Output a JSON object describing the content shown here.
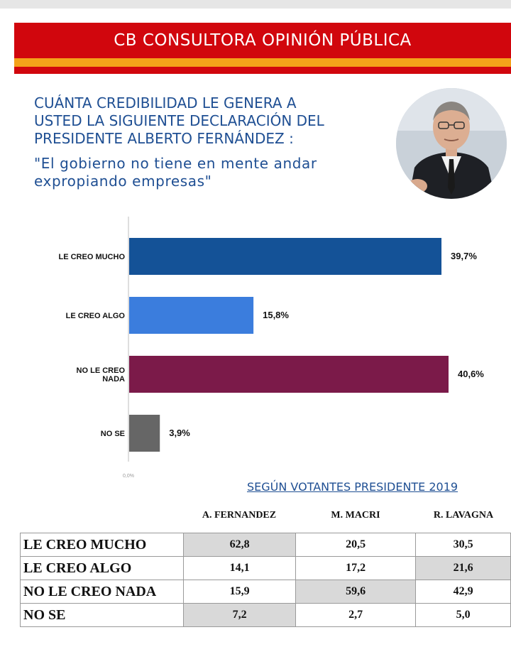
{
  "header": {
    "title": "CB CONSULTORA OPINIÓN PÚBLICA"
  },
  "question": {
    "lines": [
      "CUÁNTA CREDIBILIDAD LE GENERA A",
      "USTED LA SIGUIENTE DECLARACIÓN DEL",
      "PRESIDENTE ALBERTO FERNÁNDEZ :"
    ],
    "quote_lines": [
      "\"El gobierno no tiene en mente andar",
      "expropiando empresas\""
    ]
  },
  "colors": {
    "banner_red": "#d1060d",
    "banner_orange": "#f4a21a",
    "title_blue": "#1f4f93"
  },
  "chart_data": {
    "type": "bar",
    "orientation": "horizontal",
    "categories": [
      "LE CREO MUCHO",
      "LE CREO ALGO",
      "NO LE CREO NADA",
      "NO SE"
    ],
    "values": [
      39.7,
      15.8,
      40.6,
      3.9
    ],
    "value_labels": [
      "39,7%",
      "15,8%",
      "40,6%",
      "3,9%"
    ],
    "bar_colors": [
      "#145297",
      "#3b7ddd",
      "#7b1a49",
      "#666666"
    ],
    "axis_origin_label": "0,0%",
    "xlim": [
      0,
      42
    ]
  },
  "breakdown": {
    "subtitle": "SEGÚN VOTANTES PRESIDENTE 2019",
    "columns": [
      "A. FERNANDEZ",
      "M. MACRI",
      "R. LAVAGNA"
    ],
    "rows": [
      {
        "label": "LE CREO MUCHO",
        "values": [
          "62,8",
          "20,5",
          "30,5"
        ]
      },
      {
        "label": "LE CREO ALGO",
        "values": [
          "14,1",
          "17,2",
          "21,6"
        ]
      },
      {
        "label": "NO LE CREO NADA",
        "values": [
          "15,9",
          "59,6",
          "42,9"
        ]
      },
      {
        "label": "NO SE",
        "values": [
          "7,2",
          "2,7",
          "5,0"
        ]
      }
    ],
    "shaded_cells": [
      [
        0,
        0
      ],
      [
        1,
        2
      ],
      [
        2,
        1
      ],
      [
        3,
        0
      ]
    ]
  }
}
